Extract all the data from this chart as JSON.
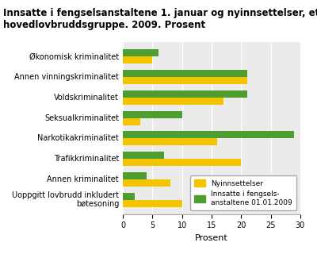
{
  "categories": [
    "Økonomisk kriminalitet",
    "Annen vinningskriminalitet",
    "Voldskriminalitet",
    "Seksualkriminalitet",
    "Narkotikakriminalitet",
    "Trafikkriminalitet",
    "Annen kriminalitet",
    "Uoppgitt lovbrudd inkludert\nbøtesoning"
  ],
  "green_values": [
    6,
    21,
    21,
    10,
    29,
    7,
    4,
    2
  ],
  "yellow_values": [
    5,
    21,
    17,
    3,
    16,
    20,
    8,
    10
  ],
  "green_color": "#4d9e2e",
  "yellow_color": "#f5c400",
  "title": "Innsatte i fengselsanstaltene 1. januar og nyinnsettelser, etter\nhovedlovbruddsgruppe. 2009. Prosent",
  "xlabel": "Prosent",
  "xlim": [
    0,
    30
  ],
  "xticks": [
    0,
    5,
    10,
    15,
    20,
    25,
    30
  ],
  "legend_yellow": "Nyinnsettelser",
  "legend_green": "Innsatte i fengsels-\nanstaltene 01.01.2009",
  "bar_height": 0.35,
  "title_fontsize": 8.5,
  "tick_fontsize": 7,
  "label_fontsize": 8,
  "background_color": "#ffffff",
  "plot_bg_color": "#ebebeb"
}
